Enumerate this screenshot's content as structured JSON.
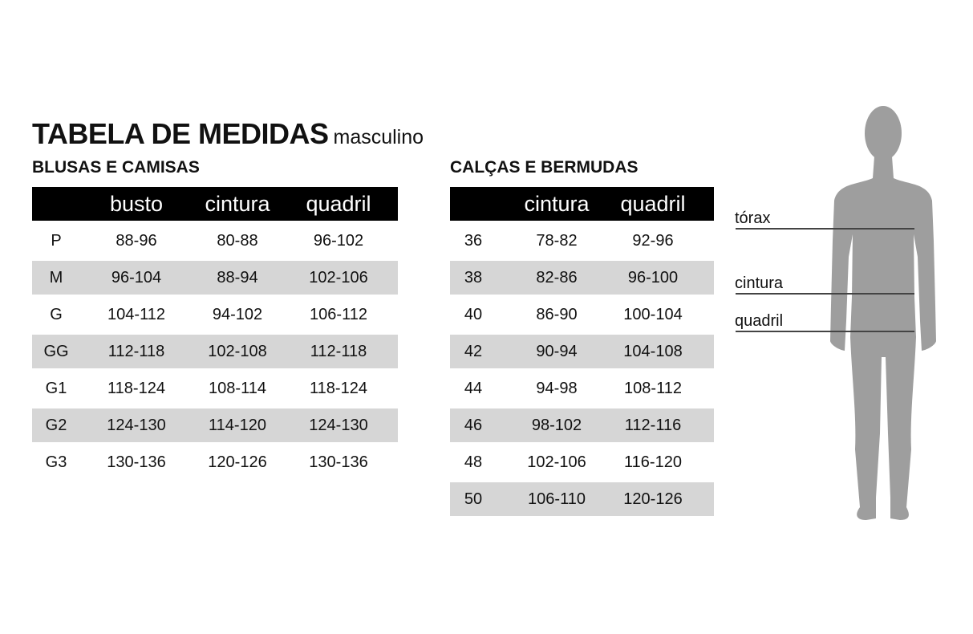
{
  "title": "TABELA DE MEDIDAS",
  "subtitle": "masculino",
  "shirts": {
    "heading": "BLUSAS E CAMISAS",
    "columns": [
      "",
      "busto",
      "cintura",
      "quadril"
    ],
    "rows": [
      [
        "P",
        "88-96",
        "80-88",
        "96-102"
      ],
      [
        "M",
        "96-104",
        "88-94",
        "102-106"
      ],
      [
        "G",
        "104-112",
        "94-102",
        "106-112"
      ],
      [
        "GG",
        "112-118",
        "102-108",
        "112-118"
      ],
      [
        "G1",
        "118-124",
        "108-114",
        "118-124"
      ],
      [
        "G2",
        "124-130",
        "114-120",
        "124-130"
      ],
      [
        "G3",
        "130-136",
        "120-126",
        "130-136"
      ]
    ]
  },
  "pants": {
    "heading": "CALÇAS E BERMUDAS",
    "columns": [
      "",
      "cintura",
      "quadril"
    ],
    "rows": [
      [
        "36",
        "78-82",
        "92-96"
      ],
      [
        "38",
        "82-86",
        "96-100"
      ],
      [
        "40",
        "86-90",
        "100-104"
      ],
      [
        "42",
        "90-94",
        "104-108"
      ],
      [
        "44",
        "94-98",
        "108-112"
      ],
      [
        "46",
        "98-102",
        "112-116"
      ],
      [
        "48",
        "102-106",
        "116-120"
      ],
      [
        "50",
        "106-110",
        "120-126"
      ]
    ]
  },
  "figure": {
    "labels": {
      "chest": "tórax",
      "waist": "cintura",
      "hip": "quadril"
    },
    "body_color": "#9e9e9e",
    "line_color": "#444444"
  },
  "colors": {
    "header_bg": "#000000",
    "stripe": "#d6d6d6"
  }
}
